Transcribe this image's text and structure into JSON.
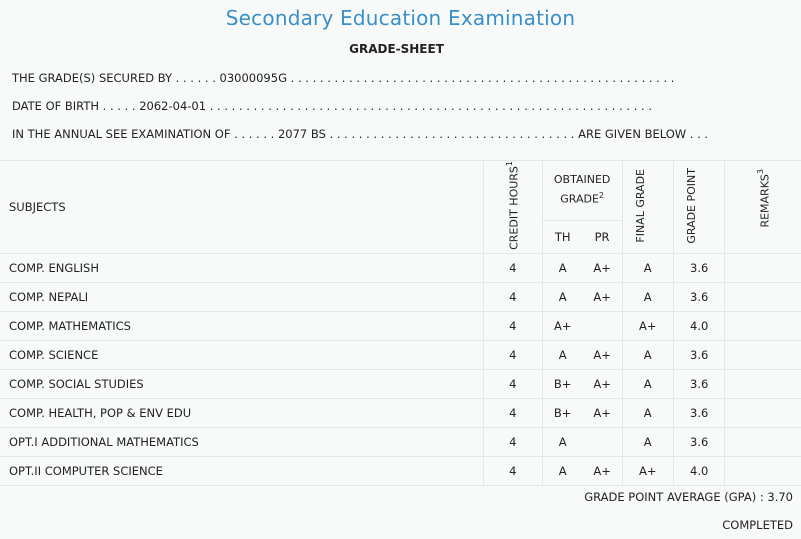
{
  "title": "Secondary Education Examination",
  "subtitle": "GRADE-SHEET",
  "info": {
    "line1": "THE GRADE(S) SECURED BY . . . . . . 03000095G . . . . . . . . . . . . . . . . . . . . . . . . . . . . . . . . . . . . . . . . . . . . . . . . . . . . .",
    "line2": "DATE OF BIRTH . . . . . 2062-04-01 . . . . . . . . . . . . . . . . . . . . . . . . . . . . . . . . . . . . . . . . . . . . . . . . . . . . . . . . . . . . .",
    "line3": "IN THE ANNUAL SEE EXAMINATION OF . . . . . . 2077 BS . . . . . . . . . . . . . . . . . . . . . . . . . . . . . . . . . . ARE GIVEN BELOW . . ."
  },
  "table": {
    "headers": {
      "subjects": "SUBJECTS",
      "credit": "CREDIT HOURS",
      "credit_sup": "1",
      "obtained": "OBTAINED GRADE",
      "obtained_sup": "2",
      "th": "TH",
      "pr": "PR",
      "final": "FINAL GRADE",
      "point": "GRADE POINT",
      "remarks": "REMARKS",
      "remarks_sup": "3"
    },
    "rows": [
      {
        "subject": "COMP. ENGLISH",
        "credit": "4",
        "th": "A",
        "pr": "A+",
        "final": "A",
        "point": "3.6",
        "remarks": ""
      },
      {
        "subject": "COMP. NEPALI",
        "credit": "4",
        "th": "A",
        "pr": "A+",
        "final": "A",
        "point": "3.6",
        "remarks": ""
      },
      {
        "subject": "COMP. MATHEMATICS",
        "credit": "4",
        "th": "A+",
        "pr": "",
        "final": "A+",
        "point": "4.0",
        "remarks": ""
      },
      {
        "subject": "COMP. SCIENCE",
        "credit": "4",
        "th": "A",
        "pr": "A+",
        "final": "A",
        "point": "3.6",
        "remarks": ""
      },
      {
        "subject": "COMP. SOCIAL STUDIES",
        "credit": "4",
        "th": "B+",
        "pr": "A+",
        "final": "A",
        "point": "3.6",
        "remarks": ""
      },
      {
        "subject": "COMP. HEALTH, POP & ENV EDU",
        "credit": "4",
        "th": "B+",
        "pr": "A+",
        "final": "A",
        "point": "3.6",
        "remarks": ""
      },
      {
        "subject": "OPT.I ADDITIONAL MATHEMATICS",
        "credit": "4",
        "th": "A",
        "pr": "",
        "final": "A",
        "point": "3.6",
        "remarks": ""
      },
      {
        "subject": "OPT.II COMPUTER SCIENCE",
        "credit": "4",
        "th": "A",
        "pr": "A+",
        "final": "A+",
        "point": "4.0",
        "remarks": ""
      }
    ]
  },
  "gpa": "GRADE POINT AVERAGE (GPA) : 3.70",
  "status": "COMPLETED"
}
